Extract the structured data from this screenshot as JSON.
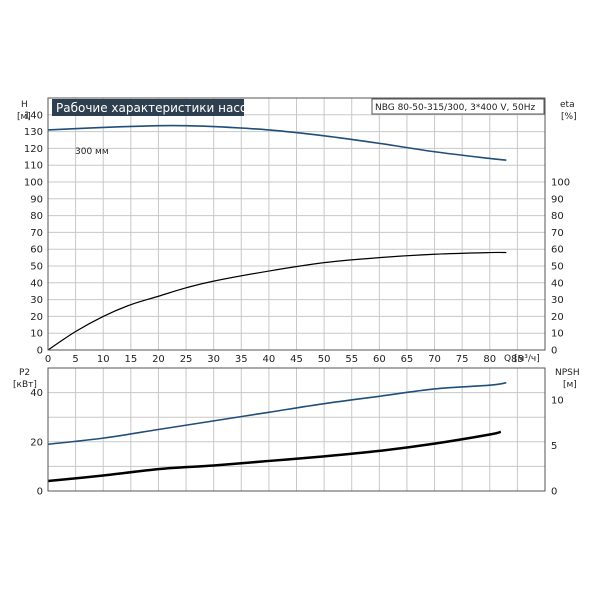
{
  "title": "Рабочие характеристики насоса",
  "model": "NBG 80-50-315/300, 3*400 V, 50Hz",
  "colors": {
    "blue": "#1f4e79",
    "black": "#000000",
    "grid": "#c8c8c8",
    "title_bg": "#2e4050"
  },
  "chart_data": [
    {
      "type": "line",
      "panel": "top",
      "left_axis": {
        "label_top": "H",
        "label_unit": "[м]",
        "ylim": [
          0,
          150
        ],
        "ticks": [
          0,
          10,
          20,
          30,
          40,
          50,
          60,
          70,
          80,
          90,
          100,
          110,
          120,
          130,
          140
        ]
      },
      "right_axis": {
        "label_top": "eta",
        "label_unit": "[%]",
        "ylim": [
          0,
          150
        ],
        "ticks": [
          0,
          10,
          20,
          30,
          40,
          50,
          60,
          70,
          80,
          90,
          100
        ]
      },
      "x_axis": {
        "label": "Q [м³/ч]",
        "xlim": [
          0,
          90
        ],
        "ticks": [
          0,
          5,
          10,
          15,
          20,
          25,
          30,
          35,
          40,
          45,
          50,
          55,
          60,
          65,
          70,
          75,
          80,
          85
        ]
      },
      "grid": true,
      "series": [
        {
          "name": "300 мм",
          "axis": "left",
          "color": "#1f4e79",
          "x": [
            0,
            10,
            20,
            25,
            30,
            40,
            50,
            60,
            70,
            80,
            83
          ],
          "y": [
            131,
            132.5,
            133.5,
            133.5,
            133,
            131,
            127.5,
            123,
            118,
            114,
            113
          ]
        },
        {
          "name": "",
          "axis": "right",
          "color": "#000000",
          "x": [
            0,
            5,
            10,
            15,
            20,
            25,
            30,
            40,
            50,
            60,
            70,
            80,
            83
          ],
          "y": [
            0,
            11,
            20,
            27,
            32,
            37,
            41,
            47,
            52,
            55,
            57,
            58,
            58
          ]
        }
      ],
      "annotations": [
        {
          "text": "300 мм"
        }
      ]
    },
    {
      "type": "line",
      "panel": "bottom",
      "left_axis": {
        "label_top": "P2",
        "label_unit": "[кВт]",
        "ylim": [
          0,
          50
        ],
        "ticks": [
          0,
          20,
          40
        ]
      },
      "right_axis": {
        "label_top": "NPSH",
        "label_unit": "[м]",
        "ylim": [
          0,
          13.5
        ],
        "ticks": [
          0,
          5,
          10
        ]
      },
      "x_axis": {
        "xlim": [
          0,
          90
        ]
      },
      "grid": true,
      "series": [
        {
          "name": "",
          "axis": "left",
          "color": "#1f4e79",
          "x": [
            0,
            10,
            20,
            30,
            40,
            50,
            60,
            70,
            80,
            83
          ],
          "y": [
            19,
            21.5,
            25,
            28.5,
            32,
            35.5,
            38.5,
            41.5,
            43,
            44
          ]
        },
        {
          "name": "",
          "axis": "right",
          "color": "#000000",
          "x": [
            0,
            10,
            20,
            30,
            40,
            50,
            60,
            70,
            80,
            82
          ],
          "y": [
            1.1,
            1.7,
            2.4,
            2.8,
            3.3,
            3.8,
            4.4,
            5.2,
            6.2,
            6.5
          ]
        }
      ]
    }
  ]
}
